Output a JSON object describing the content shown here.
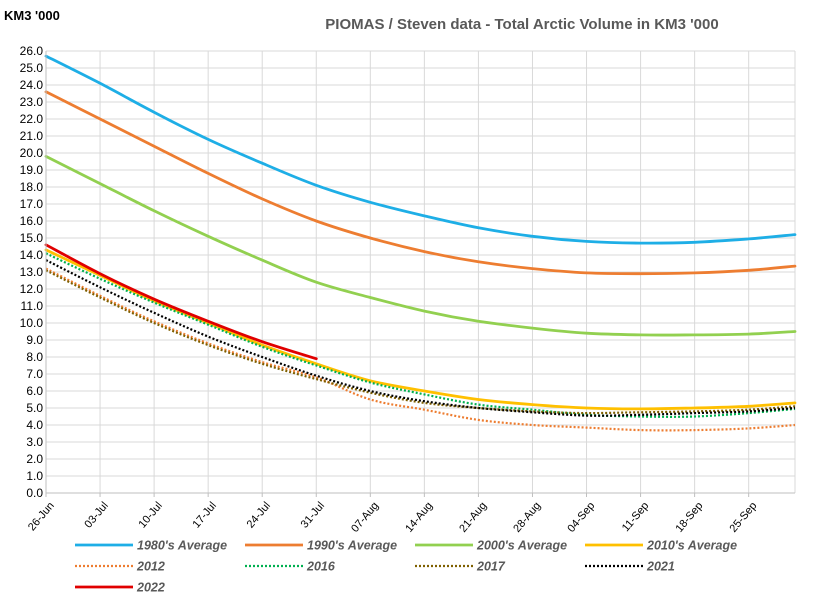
{
  "chart_data": {
    "type": "line",
    "title": "PIOMAS / Steven data -  Total Arctic Volume in KM3 '000",
    "ylabel": "KM3 '000",
    "xlabel": "",
    "ylim": [
      0,
      26
    ],
    "ytick_step": 1,
    "x_ticks": [
      "26-Jun",
      "03-Jul",
      "10-Jul",
      "17-Jul",
      "24-Jul",
      "31-Jul",
      "07-Aug",
      "14-Aug",
      "21-Aug",
      "28-Aug",
      "04-Sep",
      "11-Sep",
      "18-Sep",
      "25-Sep"
    ],
    "grid": true,
    "legend_position": "bottom",
    "series": [
      {
        "name": "1980's Average",
        "color": "#1EAEE6",
        "style": "solid",
        "points": [
          [
            "26-Jun",
            25.7
          ],
          [
            "03-Jul",
            24.1
          ],
          [
            "10-Jul",
            22.4
          ],
          [
            "17-Jul",
            20.8
          ],
          [
            "24-Jul",
            19.4
          ],
          [
            "31-Jul",
            18.1
          ],
          [
            "07-Aug",
            17.1
          ],
          [
            "14-Aug",
            16.3
          ],
          [
            "21-Aug",
            15.6
          ],
          [
            "28-Aug",
            15.1
          ],
          [
            "04-Sep",
            14.8
          ],
          [
            "11-Sep",
            14.7
          ],
          [
            "18-Sep",
            14.75
          ],
          [
            "25-Sep",
            14.95
          ],
          [
            "01-Oct",
            15.2
          ]
        ]
      },
      {
        "name": "1990's Average",
        "color": "#ED7D31",
        "style": "solid",
        "points": [
          [
            "26-Jun",
            23.6
          ],
          [
            "03-Jul",
            22.0
          ],
          [
            "10-Jul",
            20.4
          ],
          [
            "17-Jul",
            18.8
          ],
          [
            "24-Jul",
            17.3
          ],
          [
            "31-Jul",
            16.0
          ],
          [
            "07-Aug",
            15.0
          ],
          [
            "14-Aug",
            14.2
          ],
          [
            "21-Aug",
            13.6
          ],
          [
            "28-Aug",
            13.2
          ],
          [
            "04-Sep",
            12.95
          ],
          [
            "11-Sep",
            12.9
          ],
          [
            "18-Sep",
            12.95
          ],
          [
            "25-Sep",
            13.1
          ],
          [
            "01-Oct",
            13.35
          ]
        ]
      },
      {
        "name": "2000's Average",
        "color": "#92D050",
        "style": "solid",
        "points": [
          [
            "26-Jun",
            19.8
          ],
          [
            "03-Jul",
            18.2
          ],
          [
            "10-Jul",
            16.6
          ],
          [
            "17-Jul",
            15.1
          ],
          [
            "24-Jul",
            13.7
          ],
          [
            "31-Jul",
            12.4
          ],
          [
            "07-Aug",
            11.5
          ],
          [
            "14-Aug",
            10.7
          ],
          [
            "21-Aug",
            10.1
          ],
          [
            "28-Aug",
            9.7
          ],
          [
            "04-Sep",
            9.4
          ],
          [
            "11-Sep",
            9.3
          ],
          [
            "18-Sep",
            9.3
          ],
          [
            "25-Sep",
            9.35
          ],
          [
            "01-Oct",
            9.5
          ]
        ]
      },
      {
        "name": "2010's Average",
        "color": "#FFC000",
        "style": "solid",
        "points": [
          [
            "26-Jun",
            14.3
          ],
          [
            "03-Jul",
            12.8
          ],
          [
            "10-Jul",
            11.3
          ],
          [
            "17-Jul",
            10.0
          ],
          [
            "24-Jul",
            8.7
          ],
          [
            "31-Jul",
            7.6
          ],
          [
            "07-Aug",
            6.6
          ],
          [
            "14-Aug",
            6.0
          ],
          [
            "21-Aug",
            5.5
          ],
          [
            "28-Aug",
            5.2
          ],
          [
            "04-Sep",
            5.0
          ],
          [
            "11-Sep",
            4.95
          ],
          [
            "18-Sep",
            5.0
          ],
          [
            "25-Sep",
            5.1
          ],
          [
            "01-Oct",
            5.3
          ]
        ]
      },
      {
        "name": "2012",
        "color": "#ED7D31",
        "style": "dotted",
        "points": [
          [
            "26-Jun",
            13.2
          ],
          [
            "03-Jul",
            11.6
          ],
          [
            "10-Jul",
            10.1
          ],
          [
            "17-Jul",
            8.8
          ],
          [
            "24-Jul",
            7.7
          ],
          [
            "31-Jul",
            6.8
          ],
          [
            "07-Aug",
            5.5
          ],
          [
            "14-Aug",
            4.9
          ],
          [
            "21-Aug",
            4.3
          ],
          [
            "28-Aug",
            4.0
          ],
          [
            "04-Sep",
            3.85
          ],
          [
            "11-Sep",
            3.7
          ],
          [
            "18-Sep",
            3.7
          ],
          [
            "25-Sep",
            3.8
          ],
          [
            "01-Oct",
            4.0
          ]
        ]
      },
      {
        "name": "2016",
        "color": "#00B050",
        "style": "dotted",
        "points": [
          [
            "26-Jun",
            14.1
          ],
          [
            "03-Jul",
            12.6
          ],
          [
            "10-Jul",
            11.2
          ],
          [
            "17-Jul",
            9.9
          ],
          [
            "24-Jul",
            8.6
          ],
          [
            "31-Jul",
            7.5
          ],
          [
            "07-Aug",
            6.5
          ],
          [
            "14-Aug",
            5.8
          ],
          [
            "21-Aug",
            5.2
          ],
          [
            "28-Aug",
            4.9
          ],
          [
            "04-Sep",
            4.6
          ],
          [
            "11-Sep",
            4.5
          ],
          [
            "18-Sep",
            4.5
          ],
          [
            "25-Sep",
            4.7
          ],
          [
            "01-Oct",
            4.95
          ]
        ]
      },
      {
        "name": "2017",
        "color": "#7F6000",
        "style": "dotted",
        "points": [
          [
            "26-Jun",
            13.1
          ],
          [
            "03-Jul",
            11.5
          ],
          [
            "10-Jul",
            10.0
          ],
          [
            "17-Jul",
            8.7
          ],
          [
            "24-Jul",
            7.6
          ],
          [
            "31-Jul",
            6.7
          ],
          [
            "07-Aug",
            5.9
          ],
          [
            "14-Aug",
            5.3
          ],
          [
            "21-Aug",
            5.0
          ],
          [
            "28-Aug",
            4.8
          ],
          [
            "04-Sep",
            4.7
          ],
          [
            "11-Sep",
            4.75
          ],
          [
            "18-Sep",
            4.8
          ],
          [
            "25-Sep",
            4.9
          ],
          [
            "01-Oct",
            5.1
          ]
        ]
      },
      {
        "name": "2021",
        "color": "#000000",
        "style": "dotted",
        "points": [
          [
            "26-Jun",
            13.7
          ],
          [
            "03-Jul",
            12.1
          ],
          [
            "10-Jul",
            10.6
          ],
          [
            "17-Jul",
            9.2
          ],
          [
            "24-Jul",
            8.0
          ],
          [
            "31-Jul",
            6.9
          ],
          [
            "07-Aug",
            6.0
          ],
          [
            "14-Aug",
            5.4
          ],
          [
            "21-Aug",
            5.0
          ],
          [
            "28-Aug",
            4.75
          ],
          [
            "04-Sep",
            4.55
          ],
          [
            "11-Sep",
            4.6
          ],
          [
            "18-Sep",
            4.7
          ],
          [
            "25-Sep",
            4.8
          ],
          [
            "01-Oct",
            5.0
          ]
        ]
      },
      {
        "name": "2022",
        "color": "#E00000",
        "style": "solid",
        "points": [
          [
            "26-Jun",
            14.6
          ],
          [
            "03-Jul",
            12.9
          ],
          [
            "10-Jul",
            11.4
          ],
          [
            "17-Jul",
            10.1
          ],
          [
            "24-Jul",
            8.9
          ],
          [
            "31-Jul",
            7.9
          ]
        ]
      }
    ]
  }
}
